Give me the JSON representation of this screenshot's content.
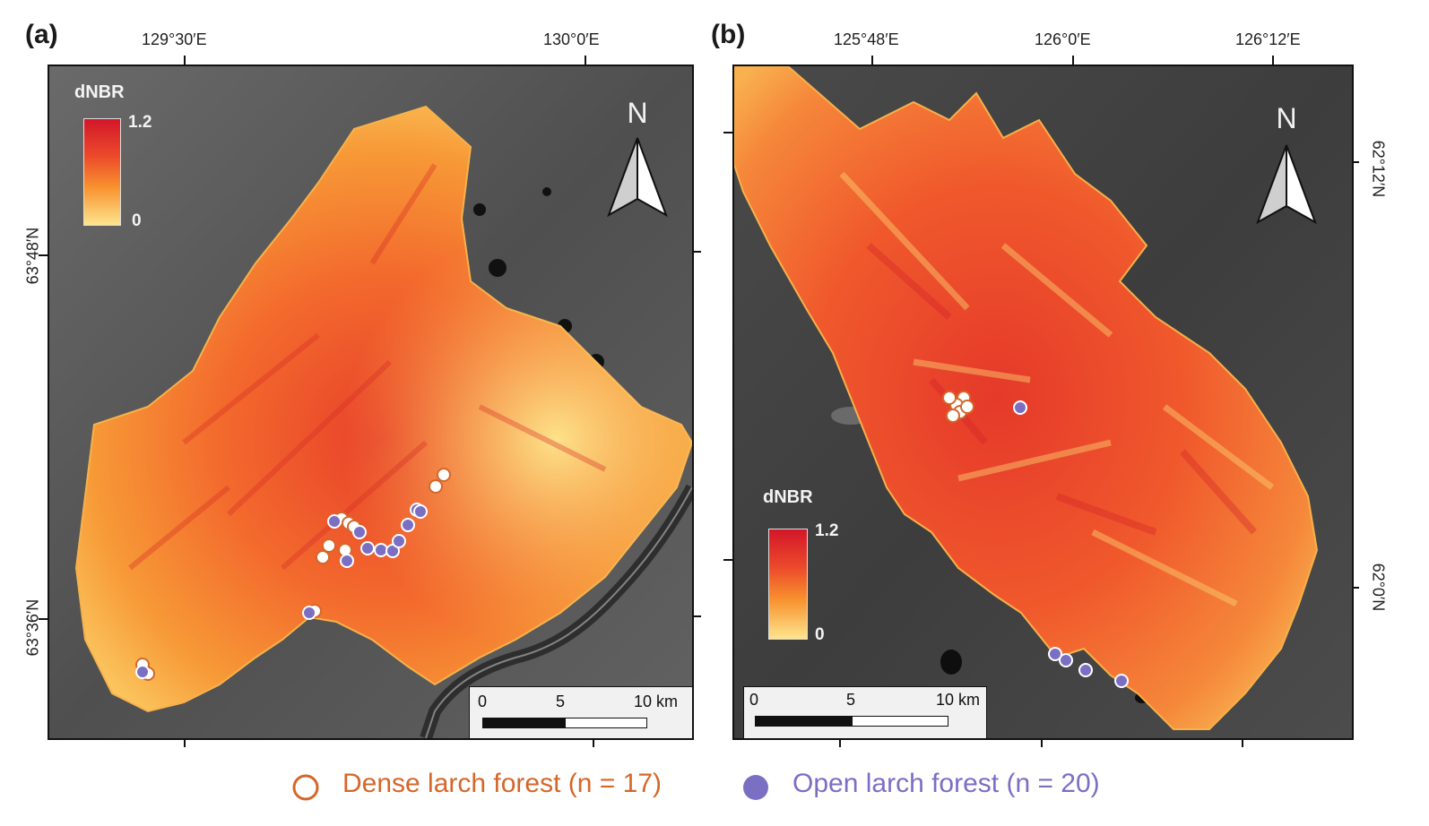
{
  "panels": [
    {
      "label": "(a)",
      "top_ticks": [
        "129°30′E",
        "130°0′E"
      ],
      "left_ticks": [
        "63°48′N",
        "63°36′N"
      ],
      "north": "N",
      "legend": {
        "title": "dNBR",
        "max": "1.2",
        "min": "0"
      },
      "scale": {
        "labels": [
          "0",
          "5",
          "10 km"
        ]
      }
    },
    {
      "label": "(b)",
      "top_ticks": [
        "125°48′E",
        "126°0′E",
        "126°12′E"
      ],
      "right_ticks": [
        "62°12′N",
        "62°0′N"
      ],
      "north": "N",
      "legend": {
        "title": "dNBR",
        "max": "1.2",
        "min": "0"
      },
      "scale": {
        "labels": [
          "0",
          "5",
          "10 km"
        ]
      }
    }
  ],
  "legend": {
    "dense": {
      "label": "Dense larch forest (n = 17)",
      "color": "#d4672a",
      "marker": "hollow-circle"
    },
    "open": {
      "label": "Open larch forest (n = 20)",
      "color": "#7a6fc3",
      "marker": "filled-circle"
    }
  },
  "colors": {
    "burn_high": "#d3162a",
    "burn_low": "#fde58e",
    "background": "#5a5a5a"
  }
}
